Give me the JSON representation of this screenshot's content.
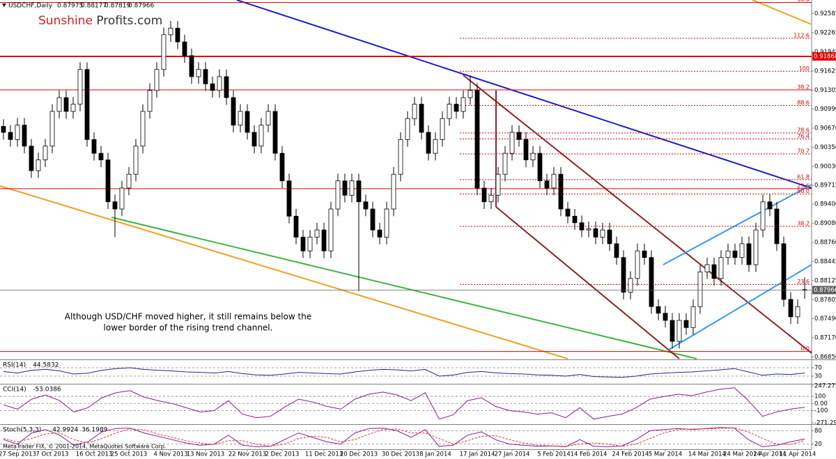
{
  "chart_data": [
    {
      "type": "candlestick",
      "title": "USDCHF,Daily",
      "categories": [
        null,
        null,
        "27 Sep 2013",
        null,
        null,
        null,
        null,
        "7 Oct 2013",
        null,
        null,
        null,
        null,
        null,
        "16 Oct 2013",
        null,
        null,
        null,
        null,
        "25 Oct 2013",
        null,
        null,
        null,
        null,
        null,
        "4 Nov 2013",
        null,
        null,
        null,
        null,
        "13 Nov 2013",
        null,
        null,
        null,
        null,
        null,
        "22 Nov 2013",
        null,
        null,
        null,
        null,
        "2 Dec 2013",
        null,
        null,
        null,
        null,
        null,
        "11 Dec 2013",
        null,
        null,
        null,
        null,
        "20 Dec 2013",
        null,
        null,
        null,
        null,
        null,
        "30 Dec 2013",
        null,
        null,
        null,
        null,
        "8 Jan 2014",
        null,
        null,
        null,
        null,
        null,
        "17 Jan 2014",
        null,
        null,
        null,
        null,
        "27 Jan 2014",
        null,
        null,
        null,
        null,
        null,
        "5 Feb 2014",
        null,
        null,
        null,
        null,
        "14 Feb 2014",
        null,
        null,
        null,
        null,
        null,
        "24 Feb 2014",
        null,
        null,
        null,
        null,
        "5 Mar 2014",
        null,
        null,
        null,
        null,
        null,
        "14 Mar 2014",
        null,
        null,
        null,
        null,
        "24 Mar 2014",
        null,
        null,
        null,
        "2 Apr 2014",
        null,
        null,
        null,
        "11 Apr 2014",
        null
      ],
      "open": [
        0.907,
        0.906,
        0.9048,
        0.9072,
        0.9037,
        0.8996,
        0.9014,
        0.9037,
        0.9095,
        0.9118,
        0.9095,
        0.9107,
        0.9165,
        0.9048,
        0.9025,
        0.9014,
        0.8944,
        0.8932,
        0.8967,
        0.899,
        0.9037,
        0.9095,
        0.913,
        0.9165,
        0.9223,
        0.9234,
        0.9211,
        0.9188,
        0.9153,
        0.9165,
        0.9141,
        0.913,
        0.9153,
        0.9118,
        0.9072,
        0.9095,
        0.906,
        0.9037,
        0.9072,
        0.9095,
        0.9025,
        0.8979,
        0.892,
        0.8885,
        0.8862,
        0.8885,
        0.8897,
        0.8862,
        0.8932,
        0.8979,
        0.8955,
        0.8979,
        0.8944,
        0.8932,
        0.8897,
        0.8885,
        0.8932,
        0.899,
        0.9048,
        0.9083,
        0.9107,
        0.906,
        0.9025,
        0.9048,
        0.9083,
        0.9107,
        0.9095,
        0.9118,
        0.913,
        0.8967,
        0.8944,
        0.8955,
        0.899,
        0.9025,
        0.906,
        0.9048,
        0.9014,
        0.9025,
        0.8979,
        0.8967,
        0.899,
        0.8932,
        0.892,
        0.8909,
        0.8897,
        0.8899,
        0.8885,
        0.8897,
        0.8874,
        0.8851,
        0.8793,
        0.8816,
        0.8862,
        0.8851,
        0.8769,
        0.8758,
        0.8746,
        0.8711,
        0.8746,
        0.8734,
        0.8769,
        0.8827,
        0.8839,
        0.8816,
        0.8851,
        0.8862,
        0.8851,
        0.8874,
        0.8839,
        0.8897,
        0.8944,
        0.8932,
        0.8874,
        0.8781,
        0.8752,
        0.87975
      ],
      "high": [
        0.9082,
        0.9072,
        0.9084,
        0.9084,
        0.9049,
        0.9026,
        0.9049,
        0.9107,
        0.913,
        0.913,
        0.9119,
        0.9177,
        0.9177,
        0.906,
        0.9037,
        0.9026,
        0.8956,
        0.8979,
        0.9002,
        0.9049,
        0.9107,
        0.9142,
        0.9177,
        0.9235,
        0.9246,
        0.9246,
        0.9223,
        0.92,
        0.9177,
        0.9177,
        0.9153,
        0.9165,
        0.9165,
        0.913,
        0.9107,
        0.9107,
        0.9072,
        0.9084,
        0.9107,
        0.9107,
        0.9037,
        0.8991,
        0.8932,
        0.8897,
        0.8897,
        0.8909,
        0.8909,
        0.8944,
        0.8991,
        0.8991,
        0.8991,
        0.8991,
        0.8956,
        0.8944,
        0.8909,
        0.8944,
        0.9002,
        0.906,
        0.9095,
        0.9119,
        0.9119,
        0.9072,
        0.906,
        0.9095,
        0.9119,
        0.9119,
        0.913,
        0.9155,
        0.9142,
        0.8979,
        0.8967,
        0.9002,
        0.9037,
        0.9072,
        0.9072,
        0.906,
        0.9037,
        0.9037,
        0.8991,
        0.9002,
        0.9002,
        0.8944,
        0.8932,
        0.8921,
        0.8911,
        0.8911,
        0.8909,
        0.8909,
        0.8886,
        0.8863,
        0.8828,
        0.8874,
        0.8874,
        0.8863,
        0.8781,
        0.877,
        0.8758,
        0.8758,
        0.8758,
        0.8781,
        0.8839,
        0.8851,
        0.8851,
        0.8863,
        0.8874,
        0.8874,
        0.8886,
        0.8886,
        0.8909,
        0.8956,
        0.8956,
        0.8944,
        0.8886,
        0.8793,
        0.8781,
        0.88177
      ],
      "low": [
        0.9048,
        0.9036,
        0.9036,
        0.9025,
        0.8984,
        0.8984,
        0.9002,
        0.9025,
        0.9083,
        0.9083,
        0.9083,
        0.9095,
        0.9036,
        0.9013,
        0.9002,
        0.8932,
        0.8885,
        0.892,
        0.8955,
        0.8978,
        0.9025,
        0.9083,
        0.9118,
        0.9153,
        0.9211,
        0.9199,
        0.9176,
        0.9141,
        0.9141,
        0.9129,
        0.9118,
        0.9118,
        0.9106,
        0.906,
        0.906,
        0.9048,
        0.9025,
        0.9025,
        0.906,
        0.9013,
        0.8967,
        0.8908,
        0.8873,
        0.885,
        0.885,
        0.8873,
        0.885,
        0.885,
        0.892,
        0.8943,
        0.8943,
        0.8795,
        0.892,
        0.8885,
        0.8873,
        0.8873,
        0.892,
        0.8978,
        0.9036,
        0.9071,
        0.9048,
        0.9013,
        0.9013,
        0.9036,
        0.9071,
        0.9083,
        0.9083,
        0.9106,
        0.8955,
        0.8932,
        0.8932,
        0.8943,
        0.8978,
        0.9013,
        0.9036,
        0.9002,
        0.9002,
        0.8967,
        0.8955,
        0.8955,
        0.892,
        0.8908,
        0.8897,
        0.8885,
        0.8885,
        0.8873,
        0.8873,
        0.8862,
        0.8839,
        0.8781,
        0.8781,
        0.8804,
        0.8839,
        0.8757,
        0.8746,
        0.8734,
        0.8699,
        0.8699,
        0.8722,
        0.8722,
        0.8757,
        0.8815,
        0.8804,
        0.8804,
        0.8839,
        0.8839,
        0.8839,
        0.8827,
        0.8827,
        0.8885,
        0.892,
        0.8862,
        0.8769,
        0.874,
        0.874,
        0.87819
      ],
      "close": [
        0.906,
        0.9048,
        0.9072,
        0.9037,
        0.8996,
        0.9014,
        0.9037,
        0.9095,
        0.9118,
        0.9095,
        0.9107,
        0.9165,
        0.9048,
        0.9025,
        0.9014,
        0.8944,
        0.8932,
        0.8967,
        0.899,
        0.9037,
        0.9095,
        0.913,
        0.9165,
        0.9223,
        0.9234,
        0.9211,
        0.9188,
        0.9153,
        0.9165,
        0.9141,
        0.913,
        0.9153,
        0.9118,
        0.9072,
        0.9095,
        0.906,
        0.9037,
        0.9072,
        0.9095,
        0.9025,
        0.8979,
        0.892,
        0.8885,
        0.8862,
        0.8885,
        0.8897,
        0.8862,
        0.8932,
        0.8979,
        0.8955,
        0.8979,
        0.8944,
        0.8932,
        0.8897,
        0.8885,
        0.8932,
        0.899,
        0.9048,
        0.9083,
        0.9107,
        0.906,
        0.9025,
        0.9048,
        0.9083,
        0.9107,
        0.9095,
        0.9118,
        0.913,
        0.8967,
        0.8944,
        0.8955,
        0.899,
        0.9025,
        0.906,
        0.9048,
        0.9014,
        0.9025,
        0.8979,
        0.8967,
        0.899,
        0.8932,
        0.892,
        0.8909,
        0.8897,
        0.8899,
        0.8885,
        0.8897,
        0.8874,
        0.8851,
        0.8793,
        0.8816,
        0.8862,
        0.8851,
        0.8769,
        0.8758,
        0.8746,
        0.8711,
        0.8746,
        0.8734,
        0.8769,
        0.8827,
        0.8839,
        0.8816,
        0.8851,
        0.8862,
        0.8851,
        0.8874,
        0.8839,
        0.8897,
        0.8944,
        0.8932,
        0.8874,
        0.8781,
        0.8752,
        0.8769,
        0.87966
      ],
      "color": "#000000",
      "up_color": "#ffffff",
      "down_color": "#000000",
      "ylim": [
        0.8682,
        0.9281
      ],
      "yticks": [
        0.92585,
        0.92265,
        0.91945,
        0.91625,
        0.91305,
        {
          "value": 0.9099,
          "label": "0.90990"
        },
        {
          "value": 0.9067,
          "label": "0.90670"
        },
        {
          "value": 0.9035,
          "label": "0.90350"
        },
        {
          "value": 0.9003,
          "label": "0.90030"
        },
        0.89715,
        {
          "value": 0.894,
          "label": "0.89400"
        },
        {
          "value": 0.8908,
          "label": "0.89080"
        },
        {
          "value": 0.8876,
          "label": "0.88760"
        },
        0.88445,
        0.88125,
        0.87805,
        {
          "value": 0.8749,
          "label": "0.87490"
        },
        {
          "value": 0.8717,
          "label": "0.87170"
        },
        {
          "value": 0.8685,
          "label": "0.86850"
        }
      ],
      "grid": false,
      "level_color": "#e00000",
      "levels": [
        {
          "label": "50.0",
          "value": 0.9277,
          "style": "solid"
        },
        {
          "label": "112.6",
          "value": 0.9217,
          "style": "dashed"
        },
        {
          "label": "100",
          "value": 0.9162,
          "style": "dashed"
        },
        {
          "label": "38.2",
          "value": 0.9131,
          "style": "solid"
        },
        {
          "label": "88.6",
          "value": 0.9105,
          "style": "dashed"
        },
        {
          "label": "78.6",
          "value": 0.9059,
          "style": "dashed"
        },
        {
          "label": "76.4",
          "value": 0.9049,
          "style": "dashed"
        },
        {
          "label": "70.7",
          "value": 0.9024,
          "style": "dashed"
        },
        {
          "label": "61.8",
          "value": 0.8981,
          "style": "dashed"
        },
        {
          "label": "23.6",
          "value": 0.8966,
          "style": "solid"
        },
        {
          "label": "50.0",
          "value": 0.8957,
          "style": "dashed"
        },
        {
          "label": "38.2",
          "value": 0.8903,
          "style": "dashed"
        },
        {
          "label": "23.6",
          "value": 0.8806,
          "style": "dashed"
        },
        {
          "label": "0.0",
          "value": 0.8694,
          "style": "solid"
        }
      ],
      "price_lines": [
        {
          "value": 0.91868,
          "color": "#e00000"
        }
      ],
      "last_price_color": "#606060",
      "brand": [
        "Sunshine",
        "Profits.com"
      ],
      "annotation": [
        "Although USD/CHF moved higher, it still remains below the",
        "lower border of the rising trend channel."
      ]
    },
    {
      "type": "line",
      "title": "RSI(14)",
      "ylim": [
        0,
        100
      ],
      "yticks": [
        70,
        30
      ],
      "grid": true,
      "series": [
        {
          "color": "#1f2a80",
          "values": [
            52,
            45,
            58,
            62,
            55,
            40,
            44,
            58,
            66,
            70,
            62,
            58,
            55,
            50,
            48,
            45,
            52,
            42,
            36,
            34,
            40,
            48,
            45,
            42,
            40,
            50,
            58,
            62,
            60,
            55,
            62,
            30,
            35,
            48,
            52,
            46,
            42,
            40,
            36,
            34,
            30,
            38,
            28,
            26,
            24,
            30,
            40,
            44,
            48,
            50,
            55,
            60,
            66,
            50,
            34,
            40,
            38,
            44.5832
          ]
        }
      ]
    },
    {
      "type": "line",
      "title": "CCI(14)",
      "ylim": [
        -271.2946,
        247.2714
      ],
      "yticks": [
        247.2714,
        100,
        {
          "value": 0,
          "label": "0.00"
        },
        -100,
        -271.2946
      ],
      "grid": true,
      "series": [
        {
          "color": "#8b1a8b",
          "values": [
            -20,
            -80,
            60,
            120,
            40,
            -120,
            -60,
            80,
            150,
            180,
            90,
            40,
            0,
            -60,
            -120,
            -100,
            40,
            -150,
            -200,
            -180,
            -50,
            60,
            20,
            -40,
            -80,
            60,
            130,
            160,
            120,
            40,
            150,
            -220,
            -160,
            40,
            80,
            -40,
            -100,
            -120,
            -150,
            -130,
            -200,
            -60,
            -220,
            -180,
            -150,
            -60,
            60,
            100,
            130,
            110,
            160,
            200,
            220,
            40,
            -180,
            -120,
            -80,
            -53.0386
          ]
        }
      ]
    },
    {
      "type": "line",
      "title": "Stoch(5,3,3)",
      "ylim": [
        0,
        100
      ],
      "yticks": [
        80,
        20
      ],
      "grid": true,
      "note": "MetaTrader FIX, © 2001-2014, MetaQuotes Software Corp.",
      "series": [
        {
          "color": "#8b1a8b",
          "dashed": false,
          "values": [
            40,
            20,
            70,
            85,
            60,
            15,
            30,
            75,
            90,
            92,
            70,
            55,
            40,
            25,
            15,
            20,
            60,
            15,
            8,
            10,
            40,
            70,
            50,
            30,
            20,
            70,
            90,
            92,
            80,
            50,
            85,
            10,
            15,
            60,
            75,
            40,
            20,
            15,
            10,
            12,
            8,
            40,
            10,
            8,
            12,
            40,
            80,
            85,
            90,
            85,
            90,
            95,
            92,
            40,
            8,
            15,
            30,
            42.9924
          ]
        },
        {
          "color": "#e03030",
          "dashed": true,
          "values": [
            45,
            30,
            45,
            65,
            70,
            40,
            25,
            45,
            70,
            88,
            85,
            65,
            50,
            35,
            25,
            18,
            35,
            35,
            20,
            10,
            20,
            45,
            55,
            50,
            30,
            40,
            65,
            85,
            88,
            70,
            70,
            45,
            20,
            35,
            55,
            58,
            40,
            25,
            15,
            12,
            10,
            20,
            25,
            20,
            10,
            20,
            45,
            70,
            85,
            88,
            88,
            90,
            93,
            75,
            45,
            20,
            18,
            36.1989
          ]
        }
      ]
    }
  ]
}
